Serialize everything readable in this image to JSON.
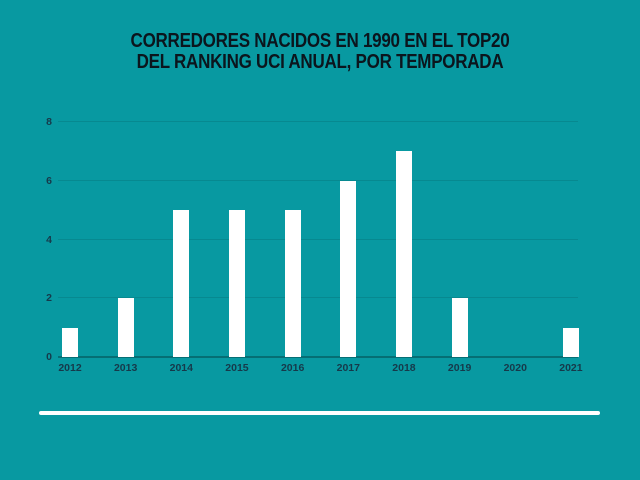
{
  "page": {
    "background_color": "#0899A1",
    "title_line1": "CORREDORES NACIDOS EN 1990 EN EL TOP20",
    "title_line2": "DEL RANKING UCI ANUAL, POR TEMPORADA",
    "title_color": "#0B151D",
    "divider_color": "#FFFFFF"
  },
  "chart_data": {
    "type": "bar",
    "title": "CORREDORES NACIDOS EN 1990 EN EL TOP20 DEL RANKING UCI ANUAL, POR TEMPORADA",
    "categories": [
      "2012",
      "2013",
      "2014",
      "2015",
      "2016",
      "2017",
      "2018",
      "2019",
      "2020",
      "2021"
    ],
    "values": [
      1,
      2,
      5,
      5,
      5,
      6,
      7,
      2,
      0,
      1
    ],
    "xlabel": "",
    "ylabel": "",
    "ylim": [
      0,
      8
    ],
    "yticks": [
      0,
      2,
      4,
      6,
      8
    ],
    "grid": true,
    "legend": "none",
    "bar_color": "#FFFFFF",
    "gridline_color": "rgba(0,0,0,0.10)",
    "axis_line_color": "rgba(0,0,0,0.28)",
    "tick_label_color": "#16394A"
  }
}
